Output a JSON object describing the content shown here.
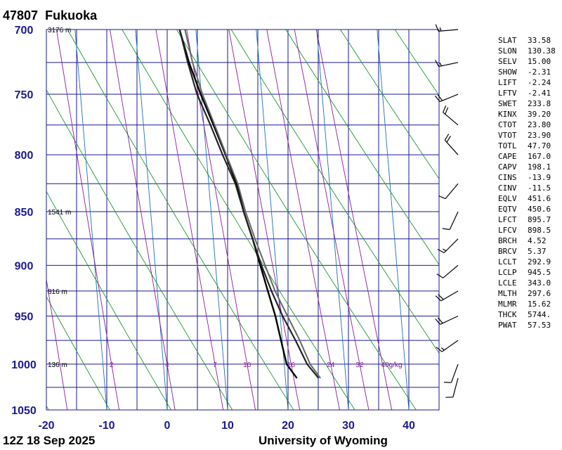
{
  "header": {
    "station_id": "47807",
    "station_name": "Fukuoka"
  },
  "footer": {
    "time": "12Z 18 Sep 2025",
    "source": "University of Wyoming"
  },
  "indices": [
    {
      "k": "SLAT",
      "v": "33.58"
    },
    {
      "k": "SLON",
      "v": "130.38"
    },
    {
      "k": "SELV",
      "v": "15.00"
    },
    {
      "k": "SHOW",
      "v": "-2.31"
    },
    {
      "k": "LIFT",
      "v": "-2.24"
    },
    {
      "k": "LFTV",
      "v": "-2.41"
    },
    {
      "k": "SWET",
      "v": "233.8"
    },
    {
      "k": "KINX",
      "v": "39.20"
    },
    {
      "k": "CTOT",
      "v": "23.80"
    },
    {
      "k": "VTOT",
      "v": "23.90"
    },
    {
      "k": "TOTL",
      "v": "47.70"
    },
    {
      "k": "CAPE",
      "v": "167.0"
    },
    {
      "k": "CAPV",
      "v": "198.1"
    },
    {
      "k": "CINS",
      "v": "-13.9"
    },
    {
      "k": "CINV",
      "v": "-11.5"
    },
    {
      "k": "EQLV",
      "v": "451.6"
    },
    {
      "k": "EQTV",
      "v": "450.6"
    },
    {
      "k": "LFCT",
      "v": "895.7"
    },
    {
      "k": "LFCV",
      "v": "898.5"
    },
    {
      "k": "BRCH",
      "v": "4.52"
    },
    {
      "k": "BRCV",
      "v": "5.37"
    },
    {
      "k": "LCLT",
      "v": "292.9"
    },
    {
      "k": "LCLP",
      "v": "945.5"
    },
    {
      "k": "LCLE",
      "v": "343.0"
    },
    {
      "k": "MLTH",
      "v": "297.6"
    },
    {
      "k": "MLMR",
      "v": "15.62"
    },
    {
      "k": "THCK",
      "v": "5744."
    },
    {
      "k": "PWAT",
      "v": "57.53"
    }
  ],
  "chart_data": {
    "type": "line",
    "xlabel": "",
    "ylabel": "",
    "xlim": [
      -20,
      45
    ],
    "ylim": [
      1050,
      700
    ],
    "x_ticks": [
      "-20",
      "-10",
      "0",
      "10",
      "20",
      "30",
      "40"
    ],
    "y_ticks": [
      "700",
      "750",
      "800",
      "850",
      "900",
      "950",
      "1000",
      "1050"
    ],
    "height_labels": [
      {
        "p": 700,
        "label": "3176 m"
      },
      {
        "p": 850,
        "label": "1541 m"
      },
      {
        "p": 925,
        "label": "816 m"
      },
      {
        "p": 1000,
        "label": "136 m"
      }
    ],
    "mixing_ratio_labels": [
      "2",
      "4",
      "7",
      "10",
      "16",
      "24",
      "32",
      "40g/kg"
    ],
    "series": [
      {
        "values": [
          [
            1015,
            21.9
          ],
          [
            1000,
            20.4
          ],
          [
            975,
            19.8
          ],
          [
            950,
            19.2
          ],
          [
            925,
            18.3
          ],
          [
            900,
            17.4
          ],
          [
            875,
            16.5
          ],
          [
            850,
            15.4
          ],
          [
            825,
            14.6
          ],
          [
            800,
            13.2
          ],
          [
            775,
            11.6
          ],
          [
            750,
            9.9
          ],
          [
            725,
            8.4
          ],
          [
            700,
            7.3
          ]
        ]
      },
      {
        "values": [
          [
            1015,
            25.5
          ],
          [
            1000,
            23.8
          ],
          [
            975,
            22.2
          ],
          [
            950,
            20.4
          ],
          [
            925,
            18.9
          ],
          [
            900,
            17.6
          ],
          [
            875,
            16.5
          ],
          [
            850,
            15.4
          ],
          [
            825,
            14.4
          ],
          [
            800,
            12.7
          ],
          [
            775,
            11.1
          ],
          [
            750,
            9.3
          ],
          [
            725,
            8.2
          ],
          [
            700,
            7.3
          ]
        ]
      },
      {
        "values": [
          [
            1015,
            25.8
          ],
          [
            1000,
            24.3
          ],
          [
            975,
            22.9
          ],
          [
            950,
            21.2
          ],
          [
            925,
            19.5
          ],
          [
            900,
            18.2
          ],
          [
            875,
            16.9
          ],
          [
            850,
            15.7
          ],
          [
            825,
            14.8
          ],
          [
            800,
            13.3
          ],
          [
            775,
            11.8
          ],
          [
            750,
            10.2
          ],
          [
            725,
            9.0
          ],
          [
            700,
            8.2
          ]
        ]
      }
    ],
    "winds": [
      {
        "p": 700,
        "dir": 265,
        "spd": 15
      },
      {
        "p": 725,
        "dir": 258,
        "spd": 15
      },
      {
        "p": 750,
        "dir": 248,
        "spd": 20
      },
      {
        "p": 775,
        "dir": 310,
        "spd": 20
      },
      {
        "p": 800,
        "dir": 318,
        "spd": 20
      },
      {
        "p": 825,
        "dir": 220,
        "spd": 10
      },
      {
        "p": 850,
        "dir": 205,
        "spd": 10
      },
      {
        "p": 875,
        "dir": 225,
        "spd": 15
      },
      {
        "p": 900,
        "dir": 230,
        "spd": 10
      },
      {
        "p": 925,
        "dir": 240,
        "spd": 20
      },
      {
        "p": 950,
        "dir": 245,
        "spd": 20
      },
      {
        "p": 975,
        "dir": 235,
        "spd": 15
      },
      {
        "p": 1000,
        "dir": 200,
        "spd": 10
      },
      {
        "p": 1015,
        "dir": 195,
        "spd": 10
      }
    ]
  }
}
